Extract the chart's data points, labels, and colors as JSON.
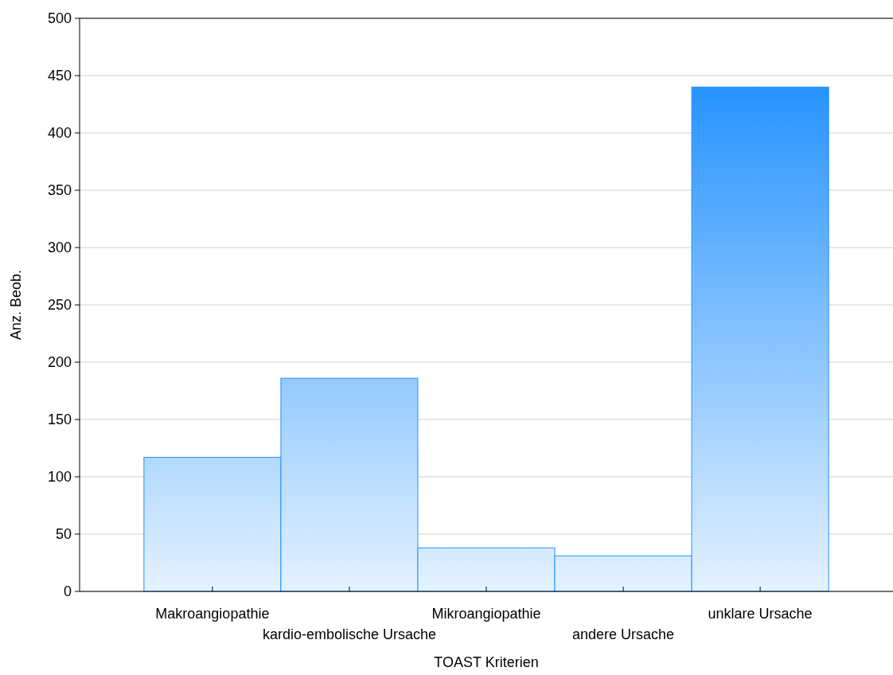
{
  "chart_data": {
    "type": "bar",
    "xlabel": "TOAST Kriterien",
    "ylabel": "Anz. Beob.",
    "categories": [
      "Makroangiopathie",
      "kardio-embolische Ursache",
      "Mikroangiopathie",
      "andere Ursache",
      "unklare Ursache"
    ],
    "values": [
      117,
      186,
      38,
      31,
      440
    ],
    "color": "#2391ff",
    "ylim": [
      0,
      500
    ],
    "yticks": [
      0,
      50,
      100,
      150,
      200,
      250,
      300,
      350,
      400,
      450,
      500
    ],
    "grid": "y"
  }
}
